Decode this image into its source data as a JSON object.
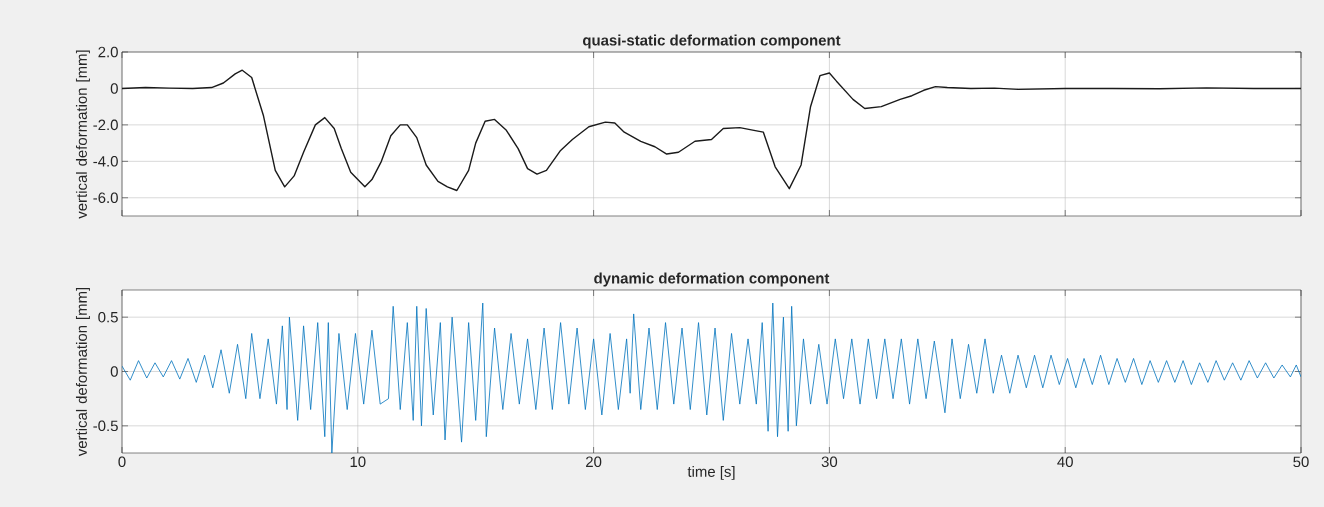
{
  "chart_data": [
    {
      "type": "line",
      "title": "quasi-static deformation component",
      "ylabel": "vertical deformation [mm]",
      "xlim": [
        0,
        50
      ],
      "ylim": [
        -7,
        2
      ],
      "xticks": [
        0,
        10,
        20,
        30,
        40,
        50
      ],
      "yticks": [
        {
          "value": -6,
          "label": "-6.0"
        },
        {
          "value": -4,
          "label": "-4.0"
        },
        {
          "value": -2,
          "label": "-2.0"
        },
        0,
        {
          "value": 2,
          "label": "2.0"
        }
      ],
      "grid": true,
      "tick_labels": "y",
      "series": [
        {
          "color": "#1a1a1a",
          "x": [
            0,
            1,
            2,
            3,
            3.8,
            4.3,
            4.8,
            5.1,
            5.5,
            6,
            6.5,
            6.9,
            7.3,
            7.7,
            8.2,
            8.6,
            9.0,
            9.3,
            9.7,
            10.3,
            10.6,
            11.0,
            11.4,
            11.8,
            12.1,
            12.5,
            12.9,
            13.4,
            13.8,
            14.2,
            14.7,
            15.0,
            15.4,
            15.8,
            16.3,
            16.8,
            17.2,
            17.6,
            18.0,
            18.6,
            19.1,
            19.8,
            20.5,
            20.9,
            21.3,
            22.0,
            22.6,
            23.1,
            23.6,
            24.3,
            25.0,
            25.5,
            26.2,
            26.8,
            27.2,
            27.7,
            28.3,
            28.8,
            29.2,
            29.6,
            30.0,
            30.3,
            31.0,
            31.5,
            32.2,
            33.0,
            33.5,
            34.0,
            34.5,
            35.0,
            36,
            37,
            38,
            40,
            42,
            44,
            46,
            48,
            50
          ],
          "values": [
            0,
            0.05,
            0.02,
            0,
            0.05,
            0.3,
            0.8,
            1.0,
            0.6,
            -1.5,
            -4.5,
            -5.4,
            -4.8,
            -3.5,
            -2.0,
            -1.6,
            -2.2,
            -3.3,
            -4.6,
            -5.4,
            -5.0,
            -4.0,
            -2.6,
            -2.0,
            -2.0,
            -2.7,
            -4.2,
            -5.1,
            -5.4,
            -5.6,
            -4.5,
            -3.0,
            -1.8,
            -1.7,
            -2.3,
            -3.3,
            -4.4,
            -4.7,
            -4.5,
            -3.4,
            -2.8,
            -2.1,
            -1.85,
            -1.9,
            -2.4,
            -2.9,
            -3.2,
            -3.6,
            -3.5,
            -2.9,
            -2.8,
            -2.2,
            -2.15,
            -2.3,
            -2.4,
            -4.3,
            -5.5,
            -4.2,
            -1.0,
            0.7,
            0.85,
            0.4,
            -0.6,
            -1.1,
            -1.0,
            -0.6,
            -0.4,
            -0.1,
            0.1,
            0.05,
            0,
            0.02,
            -0.05,
            0,
            0,
            -0.02,
            0.03,
            0,
            0
          ]
        }
      ]
    },
    {
      "type": "line",
      "title": "dynamic deformation component",
      "xlabel": "time [s]",
      "ylabel": "vertical deformation [mm]",
      "xlim": [
        0,
        50
      ],
      "ylim": [
        -0.75,
        0.75
      ],
      "xticks": [
        0,
        10,
        20,
        30,
        40,
        50
      ],
      "yticks": [
        -0.5,
        0,
        0.5
      ],
      "grid": true,
      "series": [
        {
          "color": "#0072bd",
          "x": [
            0.0,
            0.35,
            0.7,
            1.05,
            1.4,
            1.75,
            2.1,
            2.45,
            2.8,
            3.15,
            3.5,
            3.85,
            4.2,
            4.55,
            4.9,
            5.25,
            5.5,
            5.85,
            6.2,
            6.55,
            6.8,
            7.0,
            7.1,
            7.45,
            7.7,
            8.0,
            8.3,
            8.6,
            8.75,
            8.9,
            9.2,
            9.55,
            9.9,
            10.25,
            10.6,
            10.95,
            11.3,
            11.5,
            11.8,
            12.1,
            12.35,
            12.5,
            12.7,
            12.9,
            13.2,
            13.5,
            13.7,
            14.0,
            14.4,
            14.7,
            15.0,
            15.3,
            15.45,
            15.8,
            16.15,
            16.5,
            16.85,
            17.2,
            17.55,
            17.9,
            18.25,
            18.6,
            18.95,
            19.3,
            19.65,
            20.0,
            20.35,
            20.7,
            21.05,
            21.4,
            21.55,
            21.7,
            22.0,
            22.35,
            22.7,
            23.05,
            23.4,
            23.75,
            24.1,
            24.45,
            24.8,
            25.15,
            25.5,
            25.85,
            26.2,
            26.55,
            26.9,
            27.15,
            27.4,
            27.6,
            27.8,
            28.05,
            28.25,
            28.4,
            28.6,
            28.9,
            29.2,
            29.55,
            29.9,
            30.25,
            30.6,
            30.95,
            31.3,
            31.65,
            32.0,
            32.35,
            32.7,
            33.05,
            33.4,
            33.75,
            34.1,
            34.45,
            34.9,
            35.2,
            35.55,
            35.9,
            36.25,
            36.6,
            36.95,
            37.3,
            37.65,
            38.0,
            38.35,
            38.7,
            39.05,
            39.4,
            39.75,
            40.1,
            40.45,
            40.8,
            41.15,
            41.5,
            41.85,
            42.2,
            42.55,
            42.9,
            43.25,
            43.6,
            43.95,
            44.3,
            44.65,
            45.0,
            45.35,
            45.7,
            46.05,
            46.4,
            46.75,
            47.1,
            47.45,
            47.8,
            48.15,
            48.5,
            48.85,
            49.2,
            49.55,
            49.8,
            50.0
          ],
          "values": [
            0.05,
            -0.08,
            0.1,
            -0.06,
            0.08,
            -0.05,
            0.1,
            -0.07,
            0.12,
            -0.1,
            0.15,
            -0.15,
            0.2,
            -0.2,
            0.25,
            -0.25,
            0.35,
            -0.25,
            0.3,
            -0.3,
            0.42,
            -0.35,
            0.5,
            -0.45,
            0.42,
            -0.35,
            0.45,
            -0.6,
            0.45,
            -0.75,
            0.35,
            -0.35,
            0.35,
            -0.3,
            0.38,
            -0.3,
            -0.25,
            0.6,
            -0.35,
            0.45,
            -0.45,
            0.6,
            -0.5,
            0.58,
            -0.4,
            0.45,
            -0.63,
            0.5,
            -0.65,
            0.45,
            -0.45,
            0.63,
            -0.6,
            0.4,
            -0.35,
            0.35,
            -0.3,
            0.3,
            -0.35,
            0.4,
            -0.35,
            0.45,
            -0.3,
            0.4,
            -0.35,
            0.3,
            -0.4,
            0.35,
            -0.35,
            0.3,
            -0.2,
            0.53,
            -0.35,
            0.4,
            -0.35,
            0.45,
            -0.3,
            0.4,
            -0.35,
            0.45,
            -0.4,
            0.4,
            -0.45,
            0.35,
            -0.3,
            0.3,
            -0.3,
            0.45,
            -0.55,
            0.63,
            -0.6,
            0.5,
            -0.55,
            0.6,
            -0.5,
            0.3,
            -0.3,
            0.25,
            -0.3,
            0.3,
            -0.25,
            0.3,
            -0.3,
            0.3,
            -0.25,
            0.3,
            -0.25,
            0.3,
            -0.3,
            0.3,
            -0.25,
            0.28,
            -0.38,
            0.3,
            -0.25,
            0.25,
            -0.2,
            0.3,
            -0.2,
            0.15,
            -0.2,
            0.15,
            -0.15,
            0.15,
            -0.15,
            0.15,
            -0.12,
            0.12,
            -0.15,
            0.12,
            -0.12,
            0.15,
            -0.12,
            0.12,
            -0.1,
            0.12,
            -0.12,
            0.1,
            -0.1,
            0.1,
            -0.1,
            0.1,
            -0.12,
            0.08,
            -0.1,
            0.1,
            -0.08,
            0.08,
            -0.08,
            0.1,
            -0.06,
            0.08,
            -0.06,
            0.06,
            -0.05,
            0.06,
            -0.05
          ]
        }
      ]
    }
  ]
}
